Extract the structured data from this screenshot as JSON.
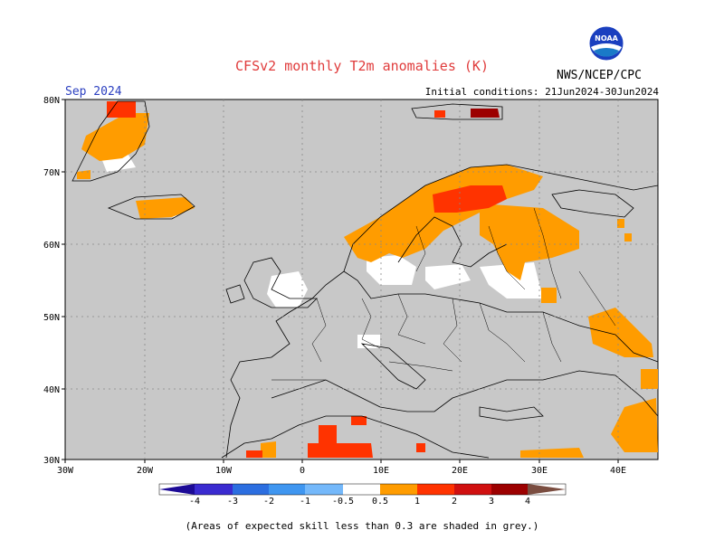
{
  "header": {
    "title": "CFSv2 monthly T2m anomalies (K)",
    "period": "Sep 2024",
    "initial_conditions": "Initial conditions: 21Jun2024-30Jun2024",
    "org": "NWS/NCEP/CPC",
    "logo_text": "NOAA"
  },
  "map": {
    "lat_labels": [
      "80N",
      "70N",
      "60N",
      "50N",
      "40N",
      "30N"
    ],
    "lon_labels": [
      "30W",
      "20W",
      "10W",
      "0",
      "10E",
      "20E",
      "30E",
      "40E"
    ],
    "background_color": "#c8c8c8"
  },
  "colorbar": {
    "labels": [
      "-4",
      "-3",
      "-2",
      "-1",
      "-0.5",
      "0.5",
      "1",
      "2",
      "3",
      "4"
    ],
    "colors": [
      "#1c0a96",
      "#3a2bd0",
      "#2c6ee0",
      "#3f96f0",
      "#74b8fa",
      "#ffffff",
      "#ff9c00",
      "#ff3300",
      "#d01010",
      "#9c0000",
      "#c89a8a",
      "#7a4d40"
    ]
  },
  "note": "(Areas of expected skill less than 0.3 are shaded in grey.)"
}
